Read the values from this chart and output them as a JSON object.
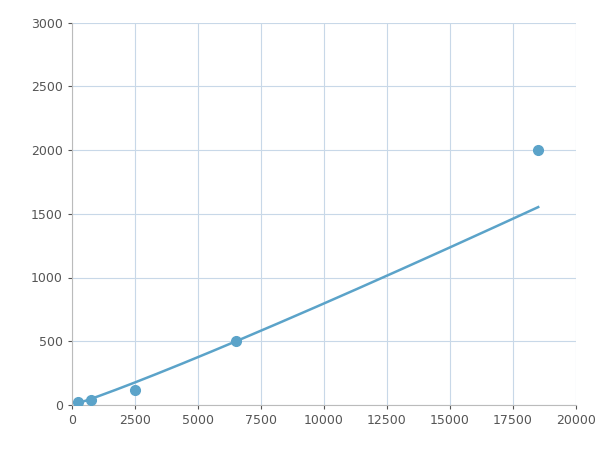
{
  "x_data": [
    250,
    750,
    2500,
    6500,
    18500
  ],
  "y_data": [
    20,
    40,
    120,
    500,
    2000
  ],
  "line_color": "#5ba3c9",
  "marker_color": "#5ba3c9",
  "marker_size": 7,
  "line_width": 1.8,
  "xlim": [
    0,
    20000
  ],
  "ylim": [
    0,
    3000
  ],
  "xticks": [
    0,
    2500,
    5000,
    7500,
    10000,
    12500,
    15000,
    17500,
    20000
  ],
  "yticks": [
    0,
    500,
    1000,
    1500,
    2000,
    2500,
    3000
  ],
  "xtick_labels": [
    "0",
    "2500",
    "5000",
    "7500",
    "10000",
    "12500",
    "15000",
    "17500",
    "20000"
  ],
  "ytick_labels": [
    "0",
    "500",
    "1000",
    "1500",
    "2000",
    "2500",
    "3000"
  ],
  "grid_color": "#c8d8e8",
  "background_color": "#ffffff",
  "tick_fontsize": 9,
  "power_fit": true
}
